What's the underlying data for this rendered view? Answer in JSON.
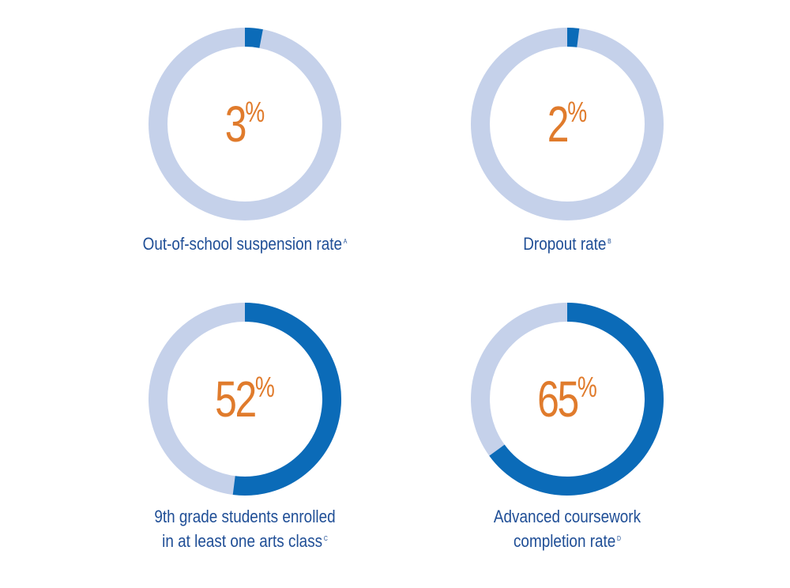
{
  "chart_data": [
    {
      "type": "pie",
      "value_label": "3",
      "unit": "%",
      "value": 3,
      "label_lines": [
        "Out-of-school suspension rate"
      ],
      "footnote": "A",
      "colors": {
        "value": "#0b6bb8",
        "remainder": "#c5d1ea"
      }
    },
    {
      "type": "pie",
      "value_label": "2",
      "unit": "%",
      "value": 2,
      "label_lines": [
        "Dropout rate"
      ],
      "footnote": "B",
      "colors": {
        "value": "#0b6bb8",
        "remainder": "#c5d1ea"
      }
    },
    {
      "type": "pie",
      "value_label": "52",
      "unit": "%",
      "value": 52,
      "label_lines": [
        "9th grade students enrolled",
        "in at least one arts class"
      ],
      "footnote": "C",
      "colors": {
        "value": "#0b6bb8",
        "remainder": "#c5d1ea"
      }
    },
    {
      "type": "pie",
      "value_label": "65",
      "unit": "%",
      "value": 65,
      "label_lines": [
        "Advanced coursework",
        "completion rate"
      ],
      "footnote": "D",
      "colors": {
        "value": "#0b6bb8",
        "remainder": "#c5d1ea"
      }
    }
  ]
}
